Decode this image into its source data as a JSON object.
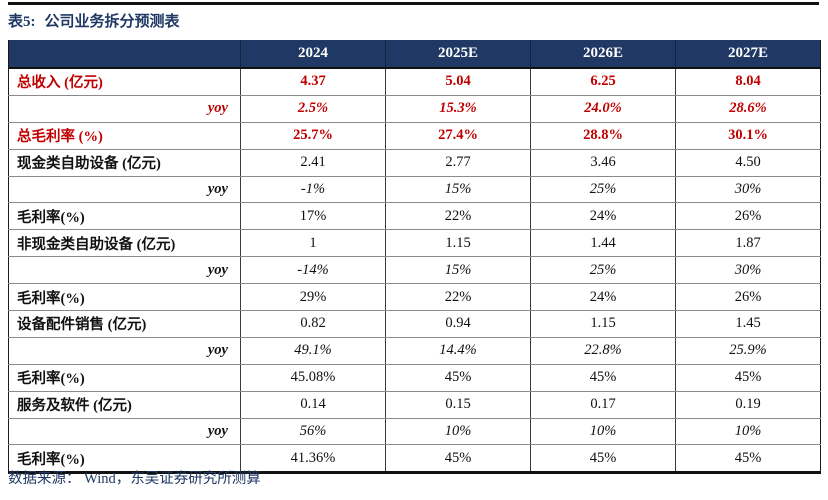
{
  "page": {
    "title_prefix": "表5:",
    "title": "公司业务拆分预测表",
    "source": "数据来源： Wind，东吴证券研究所测算"
  },
  "colors": {
    "header_navy": "#1f3864",
    "highlight_red": "#c00000",
    "grid_gray": "#8a8a8a",
    "rule_black": "#111111"
  },
  "table": {
    "columns": [
      "",
      "2024",
      "2025E",
      "2026E",
      "2027E"
    ],
    "rows": [
      {
        "label": "总收入 (亿元)",
        "values": [
          "4.37",
          "5.04",
          "6.25",
          "8.04"
        ],
        "style": "red-bold"
      },
      {
        "label": "yoy",
        "values": [
          "2.5%",
          "15.3%",
          "24.0%",
          "28.6%"
        ],
        "style": "red-italic"
      },
      {
        "label": "总毛利率 (%)",
        "values": [
          "25.7%",
          "27.4%",
          "28.8%",
          "30.1%"
        ],
        "style": "red-bold"
      },
      {
        "label": "现金类自助设备 (亿元)",
        "values": [
          "2.41",
          "2.77",
          "3.46",
          "4.50"
        ],
        "style": "black"
      },
      {
        "label": "yoy",
        "values": [
          "-1%",
          "15%",
          "25%",
          "30%"
        ],
        "style": "black-italic"
      },
      {
        "label": "毛利率(%)",
        "values": [
          "17%",
          "22%",
          "24%",
          "26%"
        ],
        "style": "black"
      },
      {
        "label": "非现金类自助设备 (亿元)",
        "values": [
          "1",
          "1.15",
          "1.44",
          "1.87"
        ],
        "style": "black"
      },
      {
        "label": "yoy",
        "values": [
          "-14%",
          "15%",
          "25%",
          "30%"
        ],
        "style": "black-italic"
      },
      {
        "label": "毛利率(%)",
        "values": [
          "29%",
          "22%",
          "24%",
          "26%"
        ],
        "style": "black"
      },
      {
        "label": "设备配件销售 (亿元)",
        "values": [
          "0.82",
          "0.94",
          "1.15",
          "1.45"
        ],
        "style": "black"
      },
      {
        "label": "yoy",
        "values": [
          "49.1%",
          "14.4%",
          "22.8%",
          "25.9%"
        ],
        "style": "black-italic"
      },
      {
        "label": "毛利率(%)",
        "values": [
          "45.08%",
          "45%",
          "45%",
          "45%"
        ],
        "style": "black"
      },
      {
        "label": "服务及软件 (亿元)",
        "values": [
          "0.14",
          "0.15",
          "0.17",
          "0.19"
        ],
        "style": "black"
      },
      {
        "label": "yoy",
        "values": [
          "56%",
          "10%",
          "10%",
          "10%"
        ],
        "style": "black-italic"
      },
      {
        "label": "毛利率(%)",
        "values": [
          "41.36%",
          "45%",
          "45%",
          "45%"
        ],
        "style": "black"
      }
    ]
  }
}
